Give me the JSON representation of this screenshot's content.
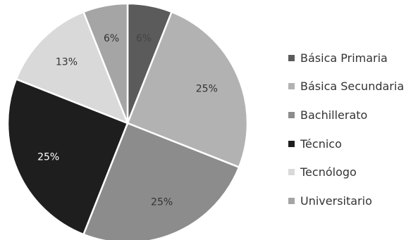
{
  "chart_data": {
    "type": "pie",
    "title": "",
    "categories": [
      "Básica Primaria",
      "Básica Secundaria",
      "Bachillerato",
      "Técnico",
      "Tecnólogo",
      "Universitario"
    ],
    "values": [
      6,
      25,
      25,
      25,
      13,
      6
    ],
    "labels": [
      "6%",
      "25%",
      "25%",
      "25%",
      "13%",
      "6%"
    ],
    "colors": [
      "#5b5b5b",
      "#b2b2b2",
      "#8c8c8c",
      "#1e1e1e",
      "#d9d9d9",
      "#a5a5a5"
    ],
    "start_angle": "12 o'clock",
    "direction": "clockwise",
    "legend_position": "right"
  }
}
